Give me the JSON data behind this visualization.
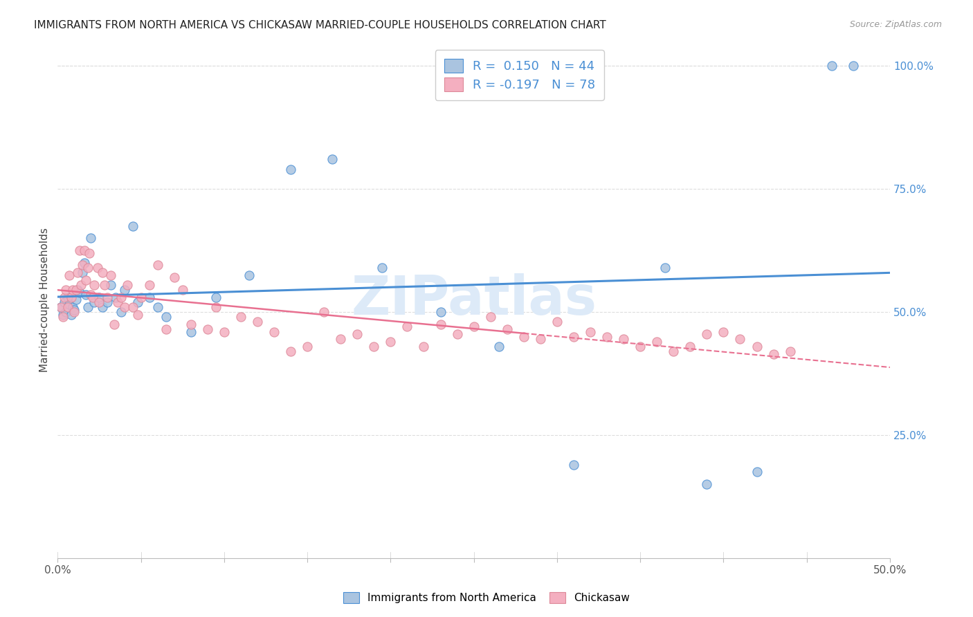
{
  "title": "IMMIGRANTS FROM NORTH AMERICA VS CHICKASAW MARRIED-COUPLE HOUSEHOLDS CORRELATION CHART",
  "source": "Source: ZipAtlas.com",
  "ylabel": "Married-couple Households",
  "xlim": [
    0.0,
    0.5
  ],
  "ylim": [
    0.0,
    1.05
  ],
  "xtick_labels": [
    "0.0%",
    "",
    "",
    "",
    "",
    "",
    "",
    "",
    "",
    "",
    "50.0%"
  ],
  "xtick_vals": [
    0.0,
    0.05,
    0.1,
    0.15,
    0.2,
    0.25,
    0.3,
    0.35,
    0.4,
    0.45,
    0.5
  ],
  "ytick_labels": [
    "25.0%",
    "50.0%",
    "75.0%",
    "100.0%"
  ],
  "ytick_vals": [
    0.25,
    0.5,
    0.75,
    1.0
  ],
  "blue_color": "#aac4e0",
  "pink_color": "#f4afc0",
  "blue_line_color": "#4a8fd4",
  "pink_line_color": "#e87090",
  "R_blue": 0.15,
  "N_blue": 44,
  "R_pink": -0.197,
  "N_pink": 78,
  "legend_label_blue": "Immigrants from North America",
  "legend_label_pink": "Chickasaw",
  "watermark": "ZIPatlas",
  "blue_scatter_x": [
    0.002,
    0.003,
    0.004,
    0.005,
    0.006,
    0.007,
    0.008,
    0.009,
    0.01,
    0.011,
    0.012,
    0.013,
    0.015,
    0.016,
    0.017,
    0.018,
    0.02,
    0.022,
    0.025,
    0.027,
    0.03,
    0.032,
    0.035,
    0.038,
    0.04,
    0.045,
    0.048,
    0.055,
    0.06,
    0.065,
    0.08,
    0.095,
    0.115,
    0.14,
    0.165,
    0.195,
    0.23,
    0.265,
    0.31,
    0.365,
    0.39,
    0.42,
    0.465,
    0.478
  ],
  "blue_scatter_y": [
    0.51,
    0.495,
    0.52,
    0.5,
    0.53,
    0.515,
    0.495,
    0.51,
    0.505,
    0.525,
    0.545,
    0.54,
    0.58,
    0.6,
    0.535,
    0.51,
    0.65,
    0.52,
    0.53,
    0.51,
    0.52,
    0.555,
    0.53,
    0.5,
    0.545,
    0.675,
    0.52,
    0.53,
    0.51,
    0.49,
    0.46,
    0.53,
    0.575,
    0.79,
    0.81,
    0.59,
    0.5,
    0.43,
    0.19,
    0.59,
    0.15,
    0.175,
    1.0,
    1.0
  ],
  "pink_scatter_x": [
    0.002,
    0.003,
    0.004,
    0.005,
    0.006,
    0.007,
    0.008,
    0.009,
    0.01,
    0.011,
    0.012,
    0.013,
    0.014,
    0.015,
    0.016,
    0.017,
    0.018,
    0.019,
    0.02,
    0.021,
    0.022,
    0.024,
    0.025,
    0.027,
    0.028,
    0.03,
    0.032,
    0.034,
    0.036,
    0.038,
    0.04,
    0.042,
    0.045,
    0.048,
    0.05,
    0.055,
    0.06,
    0.065,
    0.07,
    0.075,
    0.08,
    0.09,
    0.095,
    0.1,
    0.11,
    0.12,
    0.13,
    0.14,
    0.15,
    0.16,
    0.17,
    0.18,
    0.19,
    0.2,
    0.21,
    0.22,
    0.23,
    0.24,
    0.25,
    0.26,
    0.27,
    0.28,
    0.29,
    0.3,
    0.31,
    0.32,
    0.33,
    0.34,
    0.35,
    0.36,
    0.37,
    0.38,
    0.39,
    0.4,
    0.41,
    0.42,
    0.43,
    0.44
  ],
  "pink_scatter_y": [
    0.51,
    0.49,
    0.53,
    0.545,
    0.51,
    0.575,
    0.53,
    0.545,
    0.5,
    0.545,
    0.58,
    0.625,
    0.555,
    0.595,
    0.625,
    0.565,
    0.59,
    0.62,
    0.535,
    0.53,
    0.555,
    0.59,
    0.52,
    0.58,
    0.555,
    0.53,
    0.575,
    0.475,
    0.52,
    0.53,
    0.51,
    0.555,
    0.51,
    0.495,
    0.53,
    0.555,
    0.595,
    0.465,
    0.57,
    0.545,
    0.475,
    0.465,
    0.51,
    0.46,
    0.49,
    0.48,
    0.46,
    0.42,
    0.43,
    0.5,
    0.445,
    0.455,
    0.43,
    0.44,
    0.47,
    0.43,
    0.475,
    0.455,
    0.47,
    0.49,
    0.465,
    0.45,
    0.445,
    0.48,
    0.45,
    0.46,
    0.45,
    0.445,
    0.43,
    0.44,
    0.42,
    0.43,
    0.455,
    0.46,
    0.445,
    0.43,
    0.415,
    0.42
  ]
}
